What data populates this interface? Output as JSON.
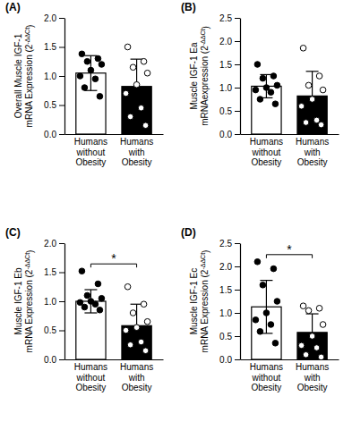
{
  "chart_data": [
    {
      "type": "bar",
      "panel_label": "(A)",
      "ylabel": {
        "lines": [
          "Overall Muscle IGF-1",
          "mRNA Expression (2"
        ],
        "superscript": "-ΔΔCt",
        "suffix": ")"
      },
      "categories": [
        "Humans without Obesity",
        "Humans with Obesity"
      ],
      "colors": [
        "#ffffff",
        "#000000"
      ],
      "values": [
        1.05,
        0.82
      ],
      "errors": [
        0.3,
        0.47
      ],
      "points": [
        [
          1.38,
          1.3,
          1.25,
          1.2,
          1.1,
          1.0,
          0.95,
          0.8,
          0.65
        ],
        [
          1.5,
          1.25,
          1.15,
          1.05,
          0.85,
          0.7,
          0.45,
          0.3,
          0.15
        ]
      ],
      "ylim": [
        0,
        2
      ],
      "yticks": [
        {
          "value": 0,
          "label": "0.0"
        },
        {
          "value": 0.5,
          "label": "0.5"
        },
        {
          "value": 1,
          "label": "1.0"
        },
        {
          "value": 1.5,
          "label": "1.5"
        },
        {
          "value": 2,
          "label": "2.0"
        }
      ]
    },
    {
      "type": "bar",
      "panel_label": "(B)",
      "ylabel": {
        "lines": [
          "Muscle IGF-1 Ea",
          "mRNAexpression (2"
        ],
        "superscript": "-ΔΔCt",
        "suffix": ")"
      },
      "categories": [
        "Humans without Obesity",
        "Humans with Obesity"
      ],
      "colors": [
        "#ffffff",
        "#000000"
      ],
      "values": [
        1.03,
        0.82
      ],
      "errors": [
        0.25,
        0.53
      ],
      "points": [
        [
          1.5,
          1.25,
          1.2,
          1.05,
          1.0,
          0.95,
          0.9,
          0.75,
          0.65
        ],
        [
          1.85,
          1.25,
          1.05,
          0.95,
          0.75,
          0.6,
          0.3,
          0.25,
          0.2
        ]
      ],
      "ylim": [
        0,
        2.5
      ],
      "yticks": [
        {
          "value": 0,
          "label": "0.0"
        },
        {
          "value": 0.5,
          "label": "0.5"
        },
        {
          "value": 1,
          "label": "1.0"
        },
        {
          "value": 1.5,
          "label": "1.5"
        },
        {
          "value": 2,
          "label": "2.0"
        },
        {
          "value": 2.5,
          "label": "2.5"
        }
      ]
    },
    {
      "type": "bar",
      "panel_label": "(C)",
      "ylabel": {
        "lines": [
          "Muscle IGF-1 Eb",
          "mRNA Expression (2"
        ],
        "superscript": "-ΔΔCt",
        "suffix": ")"
      },
      "categories": [
        "Humans without Obesity",
        "Humans with Obesity"
      ],
      "colors": [
        "#ffffff",
        "#000000"
      ],
      "values": [
        1.0,
        0.58
      ],
      "errors": [
        0.2,
        0.37
      ],
      "points": [
        [
          1.52,
          1.3,
          1.1,
          1.05,
          1.0,
          0.98,
          0.95,
          0.9,
          0.85
        ],
        [
          1.25,
          0.95,
          0.8,
          0.65,
          0.55,
          0.5,
          0.3,
          0.25,
          0.15
        ]
      ],
      "ylim": [
        0,
        2
      ],
      "yticks": [
        {
          "value": 0,
          "label": "0.0"
        },
        {
          "value": 0.5,
          "label": "0.5"
        },
        {
          "value": 1,
          "label": "1.0"
        },
        {
          "value": 1.5,
          "label": "1.5"
        },
        {
          "value": 2,
          "label": "2.0"
        }
      ],
      "significance": "*"
    },
    {
      "type": "bar",
      "panel_label": "(D)",
      "ylabel": {
        "lines": [
          "Muscle IGF-1 Ec",
          "mRNA Expression (2"
        ],
        "superscript": "-ΔΔCt",
        "suffix": ")"
      },
      "categories": [
        "Humans without Obesity",
        "Humans with Obesity"
      ],
      "colors": [
        "#ffffff",
        "#000000"
      ],
      "values": [
        1.13,
        0.58
      ],
      "errors": [
        0.57,
        0.4
      ],
      "points": [
        [
          2.1,
          1.95,
          1.6,
          1.25,
          1.0,
          0.85,
          0.75,
          0.6,
          0.35
        ],
        [
          1.15,
          1.1,
          1.05,
          0.75,
          0.5,
          0.3,
          0.25,
          0.1,
          0.05
        ]
      ],
      "ylim": [
        0,
        2.5
      ],
      "yticks": [
        {
          "value": 0,
          "label": "0.0"
        },
        {
          "value": 0.5,
          "label": "0.5"
        },
        {
          "value": 1,
          "label": "1.0"
        },
        {
          "value": 1.5,
          "label": "1.5"
        },
        {
          "value": 2,
          "label": "2.0"
        },
        {
          "value": 2.5,
          "label": "2.5"
        }
      ],
      "significance": "*"
    }
  ]
}
